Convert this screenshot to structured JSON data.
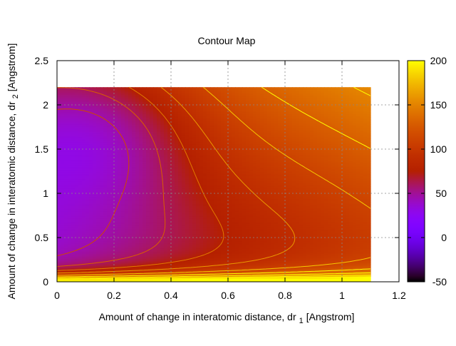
{
  "chart_data": {
    "type": "heatmap",
    "title": "Contour Map",
    "xlabel": "Amount of change in interatomic distance, dr",
    "xlabel_sub": "1",
    "xlabel_unit": "[Angstrom]",
    "ylabel": "Amount of change in interatomic distance, dr",
    "ylabel_sub": "2",
    "ylabel_unit": "[Angstrom]",
    "xlim": [
      0,
      1.2
    ],
    "ylim": [
      0,
      2.5
    ],
    "xticks": [
      "0",
      "0.2",
      "0.4",
      "0.6",
      "0.8",
      "1",
      "1.2"
    ],
    "yticks": [
      "0",
      "0.5",
      "1",
      "1.5",
      "2",
      "2.5"
    ],
    "x_tick_values": [
      0,
      0.2,
      0.4,
      0.6,
      0.8,
      1.0,
      1.2
    ],
    "y_tick_values": [
      0,
      0.5,
      1.0,
      1.5,
      2.0,
      2.5
    ],
    "grid": true,
    "data_extent": {
      "x": [
        0,
        1.1
      ],
      "y": [
        0,
        2.2
      ]
    },
    "colorbar": {
      "range": [
        -50,
        200
      ],
      "ticks": [
        "-50",
        "0",
        "50",
        "100",
        "150",
        "200"
      ],
      "tick_values": [
        -50,
        0,
        50,
        100,
        150,
        200
      ],
      "palette": "gnuplot"
    },
    "contour_levels": [
      -30,
      -15,
      0,
      15,
      30,
      45,
      60,
      75,
      90,
      110,
      130,
      150,
      170,
      190
    ]
  }
}
